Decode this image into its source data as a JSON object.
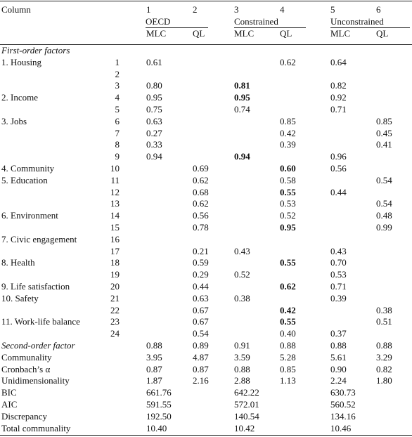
{
  "header": {
    "column": "Column",
    "numbers": [
      "1",
      "2",
      "3",
      "4",
      "5",
      "6"
    ],
    "groups": [
      "OECD",
      "Constrained",
      "Unconstrained"
    ],
    "subheads": [
      "MLC",
      "QL",
      "MLC",
      "QL",
      "MLC",
      "QL"
    ]
  },
  "rows": [
    {
      "label": "First-order factors",
      "italic": true
    },
    {
      "label": "1. Housing",
      "item": "1",
      "cells": [
        "0.61",
        null,
        null,
        "0.62",
        "0.64",
        null
      ]
    },
    {
      "label": null,
      "item": "2",
      "cells": [
        null,
        null,
        null,
        null,
        null,
        null
      ]
    },
    {
      "label": null,
      "item": "3",
      "cells": [
        "0.80",
        null,
        {
          "text": "0.81",
          "bold": true
        },
        null,
        "0.82",
        null
      ]
    },
    {
      "label": "2. Income",
      "item": "4",
      "cells": [
        "0.95",
        null,
        {
          "text": "0.95",
          "bold": true
        },
        null,
        "0.92",
        null
      ]
    },
    {
      "label": null,
      "item": "5",
      "cells": [
        "0.75",
        null,
        "0.74",
        null,
        "0.71",
        null
      ]
    },
    {
      "label": "3. Jobs",
      "item": "6",
      "cells": [
        "0.63",
        null,
        null,
        "0.85",
        null,
        "0.85"
      ]
    },
    {
      "label": null,
      "item": "7",
      "cells": [
        "0.27",
        null,
        null,
        "0.42",
        null,
        "0.45"
      ]
    },
    {
      "label": null,
      "item": "8",
      "cells": [
        "0.33",
        null,
        null,
        "0.39",
        null,
        "0.41"
      ]
    },
    {
      "label": null,
      "item": "9",
      "cells": [
        "0.94",
        null,
        {
          "text": "0.94",
          "bold": true
        },
        null,
        "0.96",
        null
      ]
    },
    {
      "label": "4. Community",
      "item": "10",
      "cells": [
        null,
        "0.69",
        null,
        {
          "text": "0.60",
          "bold": true
        },
        "0.56",
        null
      ]
    },
    {
      "label": "5. Education",
      "item": "11",
      "cells": [
        null,
        "0.62",
        null,
        "0.58",
        null,
        "0.54"
      ]
    },
    {
      "label": null,
      "item": "12",
      "cells": [
        null,
        "0.68",
        null,
        {
          "text": "0.55",
          "bold": true
        },
        "0.44",
        null
      ]
    },
    {
      "label": null,
      "item": "13",
      "cells": [
        null,
        "0.62",
        null,
        "0.53",
        null,
        "0.54"
      ]
    },
    {
      "label": "6. Environment",
      "item": "14",
      "cells": [
        null,
        "0.56",
        null,
        "0.52",
        null,
        "0.48"
      ]
    },
    {
      "label": null,
      "item": "15",
      "cells": [
        null,
        "0.78",
        null,
        {
          "text": "0.95",
          "bold": true
        },
        null,
        "0.99"
      ]
    },
    {
      "label": "7. Civic engagement",
      "item": "16",
      "cells": [
        null,
        null,
        null,
        null,
        null,
        null
      ]
    },
    {
      "label": null,
      "item": "17",
      "cells": [
        null,
        "0.21",
        "0.43",
        null,
        "0.43",
        null
      ]
    },
    {
      "label": "8. Health",
      "item": "18",
      "cells": [
        null,
        "0.59",
        null,
        {
          "text": "0.55",
          "bold": true
        },
        "0.70",
        null
      ]
    },
    {
      "label": null,
      "item": "19",
      "cells": [
        null,
        "0.29",
        "0.52",
        null,
        "0.53",
        null
      ]
    },
    {
      "label": "9. Life satisfaction",
      "item": "20",
      "cells": [
        null,
        "0.44",
        null,
        {
          "text": "0.62",
          "bold": true
        },
        "0.71",
        null
      ]
    },
    {
      "label": "10. Safety",
      "item": "21",
      "cells": [
        null,
        "0.63",
        "0.38",
        null,
        "0.39",
        null
      ]
    },
    {
      "label": null,
      "item": "22",
      "cells": [
        null,
        "0.67",
        null,
        {
          "text": "0.42",
          "bold": true
        },
        null,
        "0.38"
      ]
    },
    {
      "label": "11. Work-life balance",
      "item": "23",
      "cells": [
        null,
        "0.67",
        null,
        {
          "text": "0.55",
          "bold": true
        },
        null,
        "0.51"
      ]
    },
    {
      "label": null,
      "item": "24",
      "cells": [
        null,
        "0.54",
        null,
        "0.40",
        "0.37",
        null
      ]
    },
    {
      "label": "Second-order factor",
      "italic": true,
      "cells": [
        "0.88",
        "0.89",
        "0.91",
        "0.88",
        "0.88",
        "0.88"
      ]
    },
    {
      "label": "Communality",
      "cells": [
        "3.95",
        "4.87",
        "3.59",
        "5.28",
        "5.61",
        "3.29"
      ]
    },
    {
      "label": "Cronbach’s α",
      "cells": [
        "0.87",
        "0.87",
        "0.88",
        "0.85",
        "0.90",
        "0.82"
      ]
    },
    {
      "label": "Unidimensionality",
      "cells": [
        "1.87",
        "2.16",
        "2.88",
        "1.13",
        "2.24",
        "1.80"
      ]
    },
    {
      "label": "BIC",
      "cells": [
        "661.76",
        null,
        "642.22",
        null,
        "630.73",
        null
      ]
    },
    {
      "label": "AIC",
      "cells": [
        "591.55",
        null,
        "572.01",
        null,
        "560.52",
        null
      ]
    },
    {
      "label": "Discrepancy",
      "cells": [
        "192.50",
        null,
        "140.54",
        null,
        "134.16",
        null
      ]
    },
    {
      "label": "Total communality",
      "cells": [
        "10.40",
        null,
        "10.42",
        null,
        "10.46",
        null
      ]
    }
  ]
}
